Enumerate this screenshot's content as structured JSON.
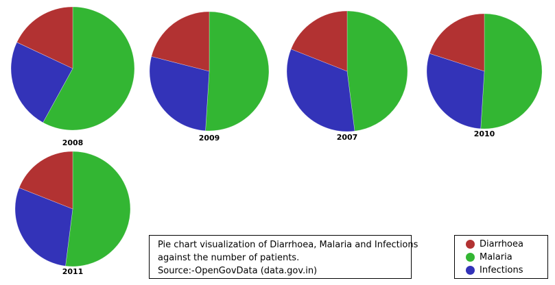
{
  "colors": {
    "Diarrhoea": "#b23232",
    "Malaria": "#33b633",
    "Infections": "#3333b8"
  },
  "chart_data": [
    {
      "type": "pie",
      "title": "2008",
      "labels": [
        "Malaria",
        "Infections",
        "Diarrhoea"
      ],
      "values": [
        58,
        24,
        18
      ]
    },
    {
      "type": "pie",
      "title": "2009",
      "labels": [
        "Malaria",
        "Infections",
        "Diarrhoea"
      ],
      "values": [
        51,
        28,
        21
      ]
    },
    {
      "type": "pie",
      "title": "2007",
      "labels": [
        "Malaria",
        "Infections",
        "Diarrhoea"
      ],
      "values": [
        48,
        33,
        19
      ]
    },
    {
      "type": "pie",
      "title": "2010",
      "labels": [
        "Malaria",
        "Infections",
        "Diarrhoea"
      ],
      "values": [
        51,
        29,
        20
      ]
    },
    {
      "type": "pie",
      "title": "2011",
      "labels": [
        "Malaria",
        "Infections",
        "Diarrhoea"
      ],
      "values": [
        52,
        29,
        19
      ]
    }
  ],
  "caption": {
    "line1": "Pie chart visualization of Diarrhoea, Malaria and Infections",
    "line2": "against the number of patients.",
    "line3": "Source:-OpenGovData (data.gov.in)"
  },
  "legend": [
    {
      "label": "Diarrhoea",
      "color": "#b23232"
    },
    {
      "label": "Malaria",
      "color": "#33b633"
    },
    {
      "label": "Infections",
      "color": "#3333b8"
    }
  ]
}
